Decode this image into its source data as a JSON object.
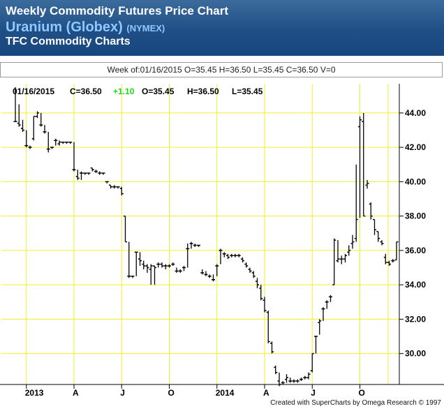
{
  "header": {
    "title": "Weekly Commodity Futures Price Chart",
    "contract": "Uranium (Globex)",
    "exchange": "(NYMEX)",
    "subtitle": "TFC Commodity Charts"
  },
  "week_bar": "Week of:01/16/2015 O=35.45 H=36.50 L=35.45 C=36.50 V=0",
  "quote_line": {
    "date": "01/16/2015",
    "close": "C=36.50",
    "change": "+1.10",
    "open": "O=35.45",
    "high": "H=36.50",
    "low": "L=35.45"
  },
  "credit": "Created with SuperCharts by Omega Research © 1997",
  "colors": {
    "grid": "#f2ef2a",
    "bars": "#000000",
    "change_positive": "#1bd41b",
    "header_title": "#ffffff",
    "header_contract": "#8ec9ff"
  },
  "chart_data": {
    "type": "ohlc",
    "period": "weekly",
    "ylim": [
      28.2,
      45.7
    ],
    "y_ticks": [
      30,
      32,
      34,
      36,
      38,
      40,
      42,
      44
    ],
    "y_tick_labels": [
      "30.00",
      "32.00",
      "34.00",
      "36.00",
      "38.00",
      "40.00",
      "42.00",
      "44.00"
    ],
    "x_tick_labels": [
      "2013",
      "A",
      "J",
      "O",
      "2014",
      "A",
      "J",
      "O"
    ],
    "x_tick_index": [
      3,
      16,
      29,
      42,
      55,
      68,
      81,
      94
    ],
    "grid": true,
    "y_axis_side": "right",
    "bars": [
      {
        "o": 43.5,
        "h": 45.5,
        "l": 43.5,
        "c": 43.5
      },
      {
        "o": 43.4,
        "h": 44.5,
        "l": 43.2,
        "c": 43.3
      },
      {
        "o": 43.1,
        "h": 43.6,
        "l": 42.9,
        "c": 43.0
      },
      {
        "o": 42.1,
        "h": 43.0,
        "l": 42.0,
        "c": 42.1
      },
      {
        "o": 42.0,
        "h": 42.1,
        "l": 41.9,
        "c": 42.0
      },
      {
        "o": 42.5,
        "h": 43.8,
        "l": 42.4,
        "c": 43.8
      },
      {
        "o": 43.8,
        "h": 44.1,
        "l": 43.7,
        "c": 44.0
      },
      {
        "o": 43.3,
        "h": 44.0,
        "l": 43.2,
        "c": 43.3
      },
      {
        "o": 42.9,
        "h": 43.3,
        "l": 42.8,
        "c": 42.9
      },
      {
        "o": 41.9,
        "h": 42.9,
        "l": 41.7,
        "c": 41.9
      },
      {
        "o": 42.0,
        "h": 42.0,
        "l": 41.9,
        "c": 42.0
      },
      {
        "o": 42.4,
        "h": 42.5,
        "l": 42.1,
        "c": 42.4
      },
      {
        "o": 42.2,
        "h": 42.4,
        "l": 42.1,
        "c": 42.3
      },
      {
        "o": 42.3,
        "h": 42.3,
        "l": 42.2,
        "c": 42.3
      },
      {
        "o": 42.3,
        "h": 42.3,
        "l": 42.2,
        "c": 42.3
      },
      {
        "o": 42.3,
        "h": 42.3,
        "l": 42.2,
        "c": 42.3
      },
      {
        "o": 40.7,
        "h": 42.3,
        "l": 40.6,
        "c": 40.7
      },
      {
        "o": 40.3,
        "h": 40.7,
        "l": 40.1,
        "c": 40.2
      },
      {
        "o": 40.5,
        "h": 40.6,
        "l": 40.1,
        "c": 40.5
      },
      {
        "o": 40.5,
        "h": 40.5,
        "l": 40.4,
        "c": 40.5
      },
      {
        "o": 40.5,
        "h": 40.5,
        "l": 40.4,
        "c": 40.5
      },
      {
        "o": 40.8,
        "h": 40.8,
        "l": 40.6,
        "c": 40.7
      },
      {
        "o": 40.6,
        "h": 40.7,
        "l": 40.5,
        "c": 40.6
      },
      {
        "o": 40.5,
        "h": 40.6,
        "l": 40.4,
        "c": 40.5
      },
      {
        "o": 40.5,
        "h": 40.5,
        "l": 40.4,
        "c": 40.5
      },
      {
        "o": 40.0,
        "h": 40.0,
        "l": 39.9,
        "c": 40.0
      },
      {
        "o": 39.8,
        "h": 39.8,
        "l": 39.6,
        "c": 39.7
      },
      {
        "o": 39.7,
        "h": 39.8,
        "l": 39.6,
        "c": 39.7
      },
      {
        "o": 39.7,
        "h": 39.7,
        "l": 39.6,
        "c": 39.7
      },
      {
        "o": 39.6,
        "h": 39.7,
        "l": 39.2,
        "c": 39.3
      },
      {
        "o": 38.0,
        "h": 38.0,
        "l": 36.5,
        "c": 36.5
      },
      {
        "o": 34.5,
        "h": 36.5,
        "l": 34.4,
        "c": 34.5
      },
      {
        "o": 34.5,
        "h": 34.5,
        "l": 34.4,
        "c": 34.5
      },
      {
        "o": 35.9,
        "h": 35.9,
        "l": 34.5,
        "c": 35.9
      },
      {
        "o": 35.5,
        "h": 35.9,
        "l": 35.1,
        "c": 35.4
      },
      {
        "o": 35.2,
        "h": 35.4,
        "l": 34.9,
        "c": 35.1
      },
      {
        "o": 35.1,
        "h": 35.2,
        "l": 34.7,
        "c": 35.0
      },
      {
        "o": 34.9,
        "h": 35.2,
        "l": 34.0,
        "c": 35.1
      },
      {
        "o": 35.1,
        "h": 35.1,
        "l": 34.0,
        "c": 35.0
      },
      {
        "o": 35.2,
        "h": 35.3,
        "l": 35.0,
        "c": 35.2
      },
      {
        "o": 35.2,
        "h": 35.3,
        "l": 35.0,
        "c": 35.1
      },
      {
        "o": 35.1,
        "h": 35.2,
        "l": 34.9,
        "c": 35.1
      },
      {
        "o": 35.1,
        "h": 35.2,
        "l": 35.0,
        "c": 35.1
      },
      {
        "o": 35.2,
        "h": 35.3,
        "l": 35.1,
        "c": 35.2
      },
      {
        "o": 34.8,
        "h": 35.0,
        "l": 34.7,
        "c": 34.8
      },
      {
        "o": 34.8,
        "h": 34.9,
        "l": 34.7,
        "c": 34.8
      },
      {
        "o": 35.0,
        "h": 35.1,
        "l": 34.8,
        "c": 35.0
      },
      {
        "o": 36.1,
        "h": 36.4,
        "l": 35.0,
        "c": 36.1
      },
      {
        "o": 36.4,
        "h": 36.5,
        "l": 36.1,
        "c": 36.4
      },
      {
        "o": 36.3,
        "h": 36.4,
        "l": 36.2,
        "c": 36.3
      },
      {
        "o": 36.3,
        "h": 36.3,
        "l": 36.2,
        "c": 36.3
      },
      {
        "o": 34.7,
        "h": 34.9,
        "l": 34.6,
        "c": 34.7
      },
      {
        "o": 34.6,
        "h": 34.8,
        "l": 34.5,
        "c": 34.6
      },
      {
        "o": 34.5,
        "h": 34.6,
        "l": 34.4,
        "c": 34.5
      },
      {
        "o": 34.3,
        "h": 34.6,
        "l": 34.2,
        "c": 34.3
      },
      {
        "o": 35.1,
        "h": 35.2,
        "l": 34.5,
        "c": 35.1
      },
      {
        "o": 36.0,
        "h": 36.1,
        "l": 35.2,
        "c": 36.0
      },
      {
        "o": 35.8,
        "h": 35.9,
        "l": 35.6,
        "c": 35.8
      },
      {
        "o": 35.7,
        "h": 35.8,
        "l": 35.5,
        "c": 35.6
      },
      {
        "o": 35.7,
        "h": 35.8,
        "l": 35.6,
        "c": 35.7
      },
      {
        "o": 35.7,
        "h": 35.8,
        "l": 35.6,
        "c": 35.7
      },
      {
        "o": 35.7,
        "h": 35.8,
        "l": 35.6,
        "c": 35.7
      },
      {
        "o": 35.5,
        "h": 35.6,
        "l": 35.3,
        "c": 35.4
      },
      {
        "o": 35.2,
        "h": 35.3,
        "l": 35.0,
        "c": 35.1
      },
      {
        "o": 34.9,
        "h": 35.0,
        "l": 34.7,
        "c": 34.8
      },
      {
        "o": 34.7,
        "h": 34.8,
        "l": 34.4,
        "c": 34.5
      },
      {
        "o": 34.2,
        "h": 34.4,
        "l": 33.8,
        "c": 34.0
      },
      {
        "o": 33.8,
        "h": 34.0,
        "l": 33.1,
        "c": 33.2
      },
      {
        "o": 33.1,
        "h": 33.3,
        "l": 32.4,
        "c": 32.5
      },
      {
        "o": 32.4,
        "h": 32.5,
        "l": 30.6,
        "c": 30.7
      },
      {
        "o": 30.6,
        "h": 30.7,
        "l": 30.0,
        "c": 30.1
      },
      {
        "o": 29.2,
        "h": 29.3,
        "l": 28.8,
        "c": 28.9
      },
      {
        "o": 28.4,
        "h": 28.9,
        "l": 28.1,
        "c": 28.2
      },
      {
        "o": 28.3,
        "h": 28.4,
        "l": 28.2,
        "c": 28.3
      },
      {
        "o": 28.5,
        "h": 28.8,
        "l": 28.3,
        "c": 28.6
      },
      {
        "o": 28.4,
        "h": 28.6,
        "l": 28.3,
        "c": 28.4
      },
      {
        "o": 28.4,
        "h": 28.5,
        "l": 28.3,
        "c": 28.4
      },
      {
        "o": 28.4,
        "h": 28.5,
        "l": 28.3,
        "c": 28.4
      },
      {
        "o": 28.5,
        "h": 28.6,
        "l": 28.4,
        "c": 28.5
      },
      {
        "o": 28.6,
        "h": 28.7,
        "l": 28.5,
        "c": 28.6
      },
      {
        "o": 28.6,
        "h": 28.9,
        "l": 28.5,
        "c": 28.8
      },
      {
        "o": 29.0,
        "h": 30.0,
        "l": 28.9,
        "c": 30.0
      },
      {
        "o": 31.0,
        "h": 31.0,
        "l": 30.0,
        "c": 31.0
      },
      {
        "o": 31.8,
        "h": 32.0,
        "l": 31.1,
        "c": 31.9
      },
      {
        "o": 32.6,
        "h": 32.7,
        "l": 31.9,
        "c": 32.6
      },
      {
        "o": 33.0,
        "h": 33.1,
        "l": 32.6,
        "c": 33.0
      },
      {
        "o": 33.3,
        "h": 33.4,
        "l": 33.0,
        "c": 33.3
      },
      {
        "o": 34.0,
        "h": 36.7,
        "l": 34.0,
        "c": 36.6
      },
      {
        "o": 35.4,
        "h": 36.6,
        "l": 35.3,
        "c": 35.5
      },
      {
        "o": 35.5,
        "h": 35.7,
        "l": 35.2,
        "c": 35.5
      },
      {
        "o": 35.5,
        "h": 35.8,
        "l": 35.3,
        "c": 35.7
      },
      {
        "o": 35.9,
        "h": 36.3,
        "l": 35.7,
        "c": 36.0
      },
      {
        "o": 36.4,
        "h": 36.9,
        "l": 36.1,
        "c": 36.5
      },
      {
        "o": 36.7,
        "h": 41.0,
        "l": 36.5,
        "c": 37.8
      },
      {
        "o": 43.2,
        "h": 43.8,
        "l": 37.9,
        "c": 43.6
      },
      {
        "o": 43.5,
        "h": 44.0,
        "l": 38.0,
        "c": 38.0
      },
      {
        "o": 39.8,
        "h": 40.1,
        "l": 39.6,
        "c": 39.9
      },
      {
        "o": 38.7,
        "h": 38.8,
        "l": 37.8,
        "c": 38.0
      },
      {
        "o": 37.8,
        "h": 37.8,
        "l": 36.9,
        "c": 37.2
      },
      {
        "o": 37.1,
        "h": 37.1,
        "l": 36.5,
        "c": 36.7
      },
      {
        "o": 36.5,
        "h": 36.6,
        "l": 36.3,
        "c": 36.4
      },
      {
        "o": 35.6,
        "h": 35.8,
        "l": 35.2,
        "c": 35.3
      },
      {
        "o": 35.3,
        "h": 35.4,
        "l": 35.1,
        "c": 35.2
      },
      {
        "o": 35.4,
        "h": 35.5,
        "l": 35.3,
        "c": 35.4
      },
      {
        "o": 35.45,
        "h": 36.5,
        "l": 35.45,
        "c": 36.5
      }
    ]
  }
}
